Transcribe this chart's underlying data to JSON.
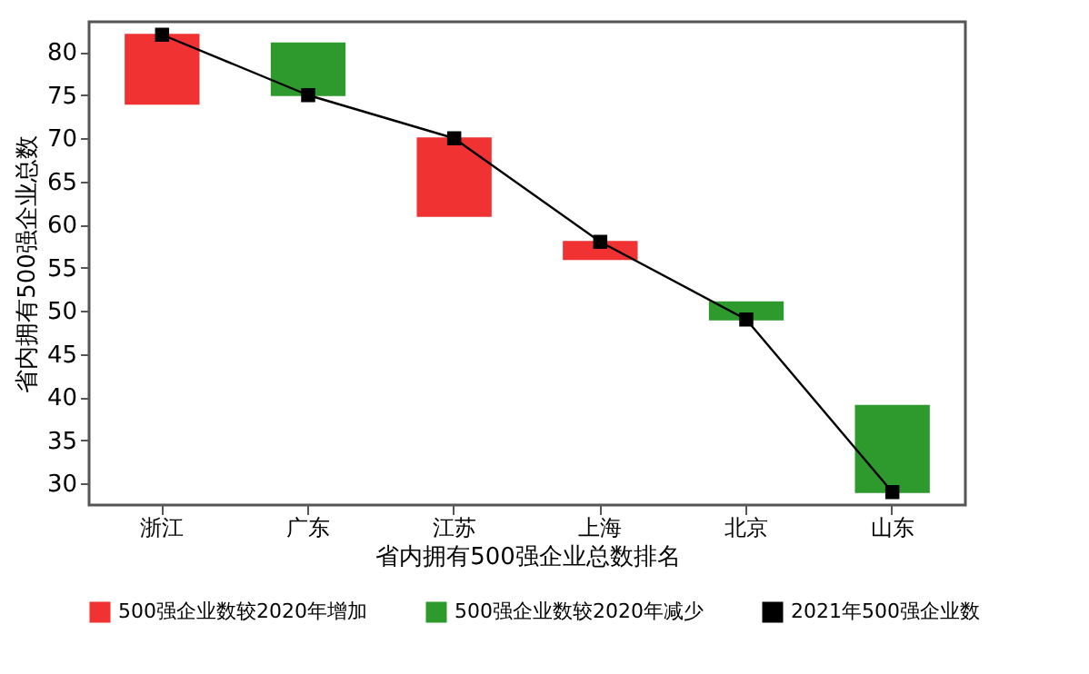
{
  "chart_data": {
    "type": "bar",
    "xlabel": "省内拥有500强企业总数排名",
    "ylabel": "省内拥有500强企业总数",
    "categories": [
      "浙江",
      "广东",
      "江苏",
      "上海",
      "北京",
      "山东"
    ],
    "series": [
      {
        "name": "500强企业数较2020年增加",
        "color": "#f03232",
        "values": [
          8,
          null,
          9,
          2,
          null,
          null
        ],
        "base": [
          74,
          null,
          61,
          56,
          null,
          null
        ]
      },
      {
        "name": "500强企业数较2020年减少",
        "color": "#2e9a2e",
        "values": [
          null,
          6,
          null,
          null,
          2,
          10
        ],
        "base": [
          null,
          75,
          null,
          null,
          49,
          29
        ]
      },
      {
        "name": "2021年500强企业数",
        "color": "#000000",
        "type": "line",
        "marker": "square",
        "values": [
          82,
          75,
          70,
          58,
          49,
          29
        ]
      }
    ],
    "ylim": [
      27.5,
      83.5
    ],
    "yticks": [
      30,
      35,
      40,
      45,
      50,
      55,
      60,
      65,
      70,
      75,
      80
    ],
    "grid": false,
    "legend": "bottom"
  }
}
